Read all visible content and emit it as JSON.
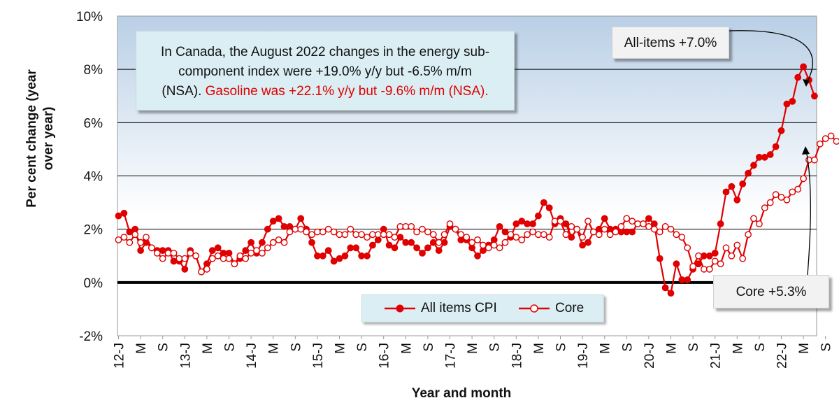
{
  "info_box": {
    "line1": "In Canada, the August 2022 changes in the energy sub-",
    "line2": "component index were +19.0% y/y but -6.5% m/m",
    "line3_black": "(NSA).",
    "line3_red": "Gasoline was +22.1% y/y but -9.6% m/m (NSA)."
  },
  "callouts": {
    "all_items": "All-items +7.0%",
    "core": "Core +5.3%"
  },
  "colors": {
    "series": "#e00000",
    "plot_top": "#b9cfe6",
    "plot_bottom": "#ffffff",
    "zero_line": "#000000"
  },
  "chart_data": {
    "type": "line",
    "xlabel": "Year and month",
    "ylabel": "Per cent change (year over year)",
    "ylim": [
      -2,
      10
    ],
    "yticks": [
      "-2%",
      "0%",
      "2%",
      "4%",
      "6%",
      "8%",
      "10%"
    ],
    "xticks": [
      "12-J",
      "M",
      "S",
      "13-J",
      "M",
      "S",
      "14-J",
      "M",
      "S",
      "15-J",
      "M",
      "S",
      "16-J",
      "M",
      "S",
      "17-J",
      "M",
      "S",
      "18-J",
      "M",
      "S",
      "19-J",
      "M",
      "S",
      "20-J",
      "M",
      "S",
      "21-J",
      "M",
      "S",
      "22-J",
      "M",
      "S"
    ],
    "x_start": "2012-01",
    "x_end": "2022-08",
    "grid": "horizontal",
    "legend": "bottom-center",
    "series": [
      {
        "name": "All items CPI",
        "marker": "filled",
        "values": [
          2.5,
          2.6,
          1.9,
          2.0,
          1.2,
          1.5,
          1.3,
          1.2,
          1.2,
          1.2,
          0.8,
          0.8,
          0.5,
          1.2,
          1.0,
          0.4,
          0.7,
          1.2,
          1.3,
          1.1,
          1.1,
          0.7,
          0.9,
          1.2,
          1.5,
          1.1,
          1.5,
          2.0,
          2.3,
          2.4,
          2.1,
          2.1,
          2.0,
          2.4,
          2.0,
          1.5,
          1.0,
          1.0,
          1.2,
          0.8,
          0.9,
          1.0,
          1.3,
          1.3,
          1.0,
          1.0,
          1.4,
          1.6,
          2.0,
          1.4,
          1.3,
          1.7,
          1.5,
          1.5,
          1.3,
          1.1,
          1.3,
          1.5,
          1.2,
          1.5,
          2.1,
          2.0,
          1.6,
          1.6,
          1.3,
          1.0,
          1.2,
          1.4,
          1.6,
          2.1,
          1.9,
          1.7,
          2.2,
          2.3,
          2.2,
          2.2,
          2.5,
          3.0,
          2.8,
          2.2,
          2.4,
          2.2,
          1.7,
          2.0,
          1.4,
          1.5,
          1.9,
          2.0,
          2.4,
          2.0,
          2.0,
          1.9,
          1.9,
          1.9,
          2.2,
          2.2,
          2.4,
          2.2,
          0.9,
          -0.2,
          -0.4,
          0.7,
          0.1,
          0.1,
          0.5,
          0.7,
          1.0,
          1.0,
          1.1,
          2.2,
          3.4,
          3.6,
          3.1,
          3.7,
          4.1,
          4.4,
          4.7,
          4.7,
          4.8,
          5.1,
          5.7,
          6.7,
          6.8,
          7.7,
          8.1,
          7.6,
          7.0
        ]
      },
      {
        "name": "Core",
        "marker": "hollow",
        "values": [
          1.6,
          1.7,
          1.5,
          1.8,
          1.5,
          1.7,
          1.3,
          1.1,
          0.9,
          1.1,
          1.1,
          0.9,
          0.9,
          1.1,
          1.0,
          0.4,
          0.5,
          0.9,
          1.0,
          0.9,
          0.9,
          0.7,
          1.0,
          0.9,
          1.1,
          1.2,
          1.1,
          1.3,
          1.5,
          1.6,
          1.5,
          1.9,
          2.0,
          2.0,
          1.9,
          1.8,
          1.9,
          1.9,
          2.0,
          1.9,
          1.8,
          1.8,
          2.0,
          1.8,
          1.8,
          1.7,
          1.8,
          1.8,
          1.8,
          1.8,
          1.7,
          2.1,
          2.1,
          2.1,
          1.9,
          2.0,
          1.9,
          1.8,
          1.5,
          1.8,
          2.2,
          2.0,
          1.8,
          1.7,
          1.5,
          1.6,
          1.4,
          1.3,
          1.4,
          1.3,
          1.5,
          1.8,
          1.7,
          1.6,
          1.8,
          1.9,
          1.8,
          1.8,
          1.7,
          2.3,
          2.3,
          1.8,
          2.1,
          2.0,
          1.7,
          2.3,
          1.9,
          1.8,
          2.0,
          1.8,
          1.9,
          2.1,
          2.4,
          2.3,
          2.2,
          2.2,
          2.1,
          2.0,
          1.9,
          2.1,
          2.0,
          1.8,
          1.7,
          1.3,
          0.6,
          1.0,
          0.5,
          0.5,
          0.8,
          0.7,
          1.3,
          1.0,
          1.4,
          0.9,
          1.8,
          2.4,
          2.2,
          2.8,
          3.0,
          3.3,
          3.2,
          3.1,
          3.4,
          3.5,
          3.9,
          4.6,
          4.6,
          5.2,
          5.4,
          5.5,
          5.3
        ]
      }
    ]
  }
}
